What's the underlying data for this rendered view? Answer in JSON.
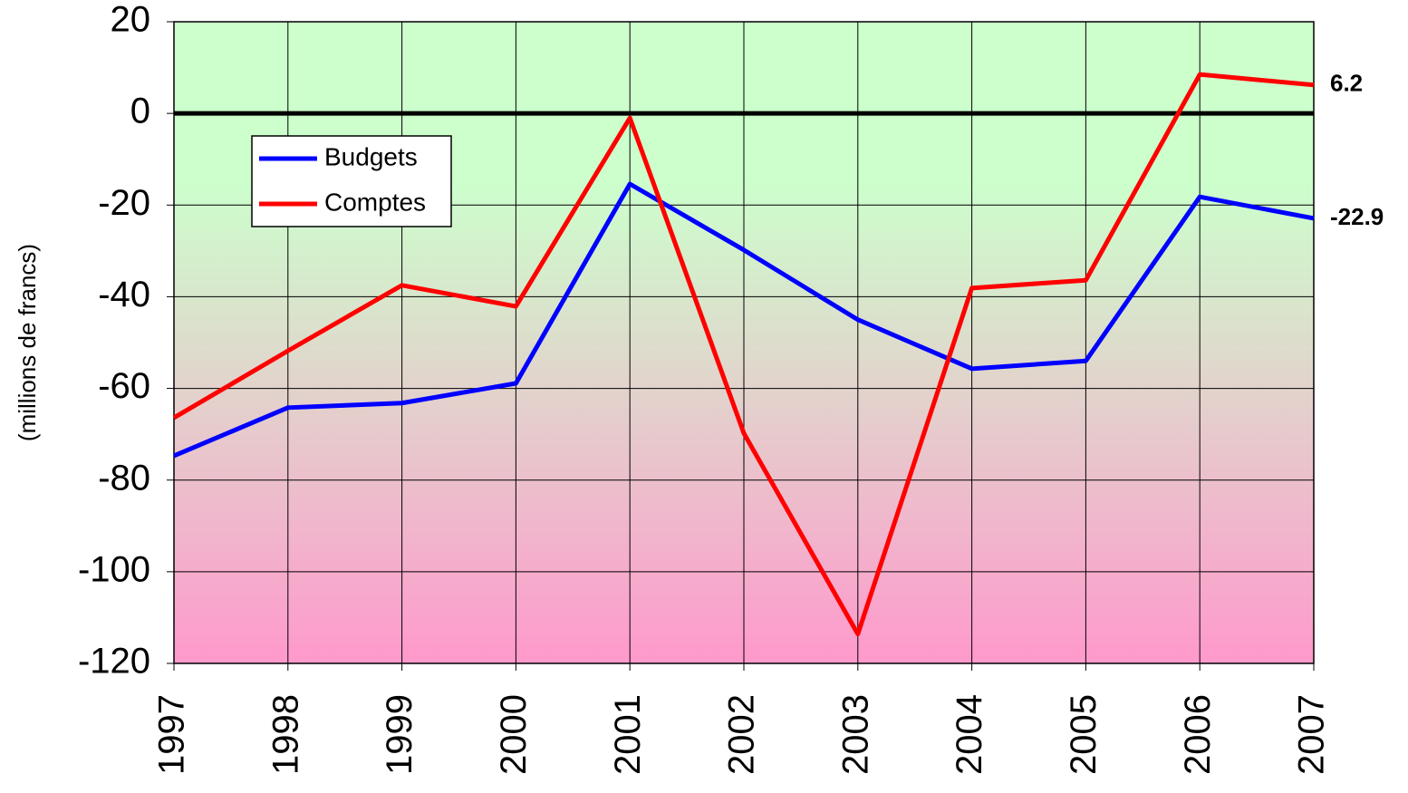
{
  "chart_data": {
    "type": "line",
    "y_label": "(millions de francs)",
    "x": [
      1997,
      1998,
      1999,
      2000,
      2001,
      2002,
      2003,
      2004,
      2005,
      2006,
      2007
    ],
    "xlim": [
      1997,
      2007
    ],
    "series": [
      {
        "name": "Budgets",
        "color": "#0000ff",
        "values": [
          -74.7,
          -64.2,
          -63.2,
          -58.9,
          -15.4,
          -29.8,
          -45,
          -55.7,
          -54,
          -18.2,
          -22.9
        ]
      },
      {
        "name": "Comptes",
        "color": "#ff0000",
        "values": [
          -66.4,
          -51.8,
          -37.5,
          -42.1,
          -1,
          -69.8,
          -113.6,
          -38.1,
          -36.4,
          8.5,
          6.2
        ]
      }
    ],
    "ylim": [
      -120,
      20
    ],
    "yticks": [
      20,
      0,
      -20,
      -40,
      -60,
      -80,
      -100,
      -120
    ],
    "grid": true,
    "legend": "upper left",
    "background": [
      "#ccffcc",
      "#ff99cc"
    ]
  }
}
